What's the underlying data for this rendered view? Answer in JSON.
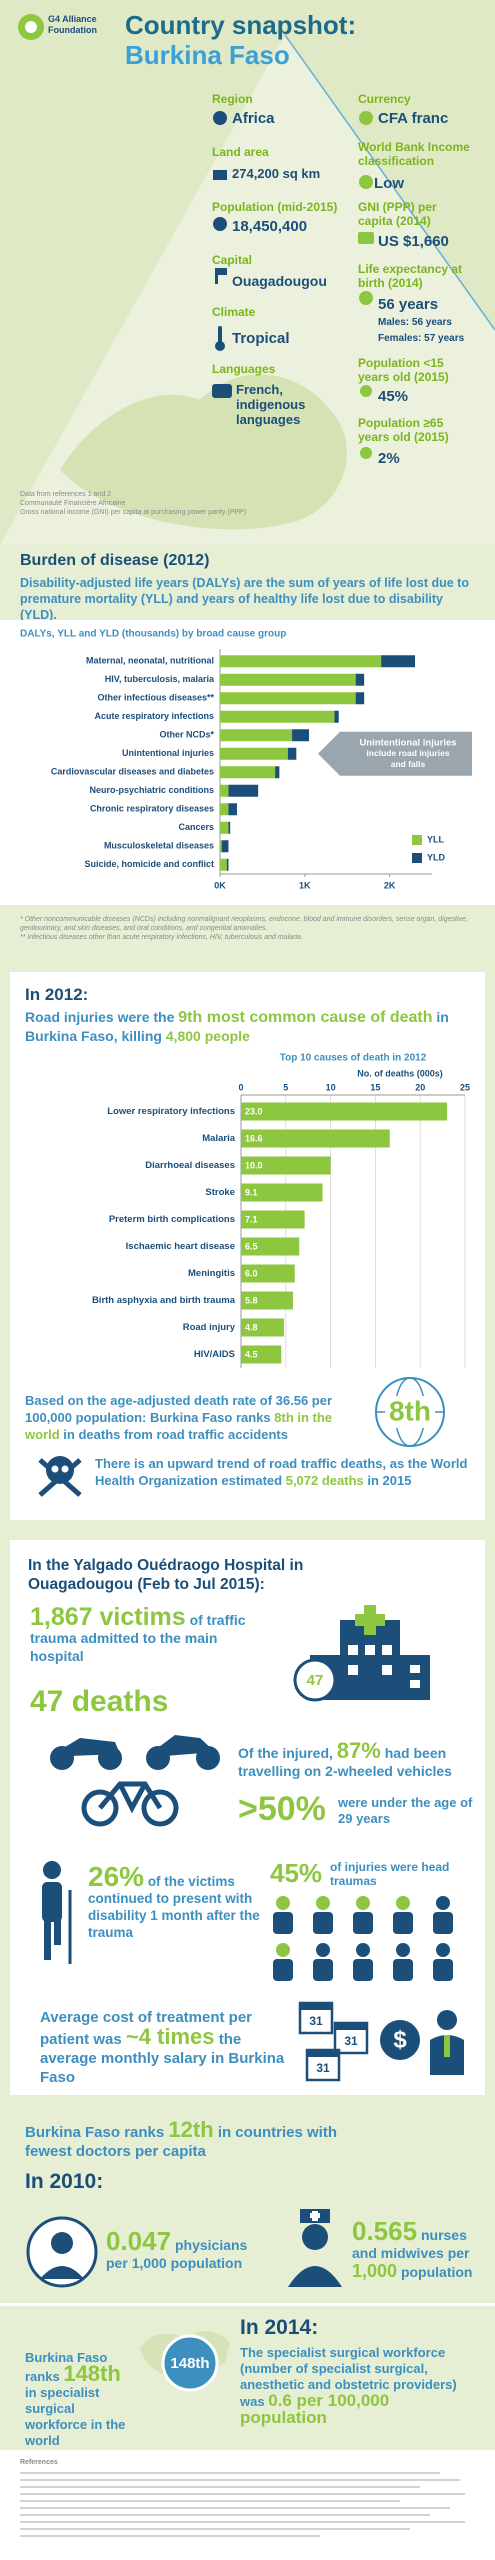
{
  "header": {
    "logo": [
      "G4 Alliance",
      "Foundation"
    ],
    "title": "Country snapshot:",
    "country": "Burkina Faso"
  },
  "facts": [
    {
      "label": "Region",
      "value": "Africa"
    },
    {
      "label": "Currency",
      "value": "CFA franc"
    },
    {
      "label": "Land area",
      "value": "274,200 sq km"
    },
    {
      "label": "World Bank Income classification",
      "value": "Low"
    },
    {
      "label": "Population (mid-2015)",
      "value": "18,450,400"
    },
    {
      "label": "GNI (PPP) per capita (2014)",
      "value": "US $1,660"
    },
    {
      "label": "Capital",
      "value": "Ouagadougou"
    },
    {
      "label": "Life expectancy at birth (2014)",
      "value": "56 years",
      "details": [
        "Males: 56 years",
        "Females: 57 years"
      ]
    },
    {
      "label": "Climate",
      "value": "Tropical"
    },
    {
      "label": "Population <15 years old (2015)",
      "value": "45%"
    },
    {
      "label": "Languages",
      "value": "French, indigenous languages"
    },
    {
      "label": "Population ≥65 years old (2015)",
      "value": "2%"
    }
  ],
  "header_notes": [
    "Data from references 1 and 2",
    "Communauté Financière Africaine",
    "Gross national income (GNI) per capita at purchasing power parity (PPP)"
  ],
  "burden": {
    "title": "Burden of disease (2012)",
    "text": "Disability-adjusted life years (DALYs) are the sum of years of life lost due to premature mortality (YLL) and years of healthy life lost due to disability (YLD)."
  },
  "chart_data": [
    {
      "type": "bar",
      "orientation": "horizontal",
      "stacked": true,
      "title": "DALYs, YLL and YLD (thousands) by broad cause group",
      "categories": [
        "Maternal, neonatal, nutritional",
        "HIV, tuberculosis, malaria",
        "Other infectious diseases**",
        "Acute respiratory infections",
        "Other NCDs*",
        "Unintentional injuries",
        "Cardiovascular diseases and diabetes",
        "Neuro-psychiatric conditions",
        "Chronic respiratory diseases",
        "Cancers",
        "Musculoskeletal diseases",
        "Suicide, homicide and conflict"
      ],
      "series": [
        {
          "name": "YLL",
          "color": "#8dc63f",
          "values": [
            1.9,
            1.6,
            1.6,
            1.35,
            0.85,
            0.8,
            0.65,
            0.1,
            0.1,
            0.1,
            0.02,
            0.08
          ]
        },
        {
          "name": "YLD",
          "color": "#1c4e7a",
          "values": [
            0.4,
            0.1,
            0.1,
            0.05,
            0.2,
            0.1,
            0.05,
            0.35,
            0.1,
            0.02,
            0.08,
            0.02
          ]
        }
      ],
      "xlim": [
        0,
        2.5
      ],
      "xticks": [
        {
          "value": 0,
          "label": "0K"
        },
        {
          "value": 1,
          "label": "1K"
        },
        {
          "value": 2,
          "label": "2K"
        }
      ],
      "legend": "lower right",
      "annotation": [
        "Unintentional injuries",
        "include road injuries",
        "and falls"
      ]
    },
    {
      "type": "bar",
      "orientation": "horizontal",
      "title": "Top 10 causes of death in 2012",
      "xlabel": "No. of deaths (000s)",
      "categories": [
        "Lower respiratory infections",
        "Malaria",
        "Diarrhoeal diseases",
        "Stroke",
        "Preterm birth complications",
        "Ischaemic heart disease",
        "Meningitis",
        "Birth asphyxia and birth trauma",
        "Road injury",
        "HIV/AIDS"
      ],
      "values": [
        23,
        16.6,
        10,
        9.1,
        7.1,
        6.5,
        6,
        5.8,
        4.8,
        4.5
      ],
      "value_labels": [
        "23.0",
        "16.6",
        "10.0",
        "9.1",
        "7.1",
        "6.5",
        "6.0",
        "5.8",
        "4.8",
        "4.5"
      ],
      "color": "#8dc63f",
      "xlim": [
        0,
        25
      ],
      "xticks": [
        0,
        5,
        10,
        15,
        20,
        25
      ],
      "xaxis_position": "top",
      "grid": true
    }
  ],
  "burden_notes": [
    "* Other noncommunicable diseases (NCDs) including nonmalignant neoplasms, endocrine, blood and immune disorders, sense organ, digestive, genitourinary, and skin diseases, and oral conditions, and congenital anomalies.",
    "** Infectious diseases other than acute respiratory infections, HIV, tuberculosis and malaria."
  ],
  "deaths": {
    "heading": "In 2012:",
    "headline": [
      "Road injuries were the",
      "9th most common cause of death",
      "in Burkina Faso, killing",
      "4,800 people"
    ],
    "rank": [
      "Based on the age-adjusted death rate of 36.56 per 100,000 population: Burkina Faso ranks",
      "8th in the world",
      "in deaths from road traffic accidents"
    ],
    "globe": "8th",
    "trend": [
      "There is an upward trend of road traffic deaths, as the World Health Organization estimated",
      "5,072 deaths",
      "in 2015"
    ]
  },
  "hospital": {
    "title": "In the Yalgado Ouédraogo Hospital in Ouagadougou (Feb to Jul 2015):",
    "victims": [
      "1,867 victims",
      "of traffic trauma admitted to the main hospital"
    ],
    "deaths": "47 deaths",
    "icon_number": "47",
    "two_wheel": [
      "Of the injured,",
      "87%",
      "had been travelling on 2-wheeled vehicles"
    ],
    "age": [
      ">50%",
      "were under the age of 29 years"
    ],
    "disability": [
      "26%",
      "of the victims continued to present with disability 1 month after the trauma"
    ],
    "head": [
      "45%",
      "of injuries were head traumas"
    ],
    "cost": [
      "Average cost of treatment per patient was",
      "~4 times",
      "the average monthly salary in Burkina Faso"
    ],
    "calendar": "31"
  },
  "doctors": {
    "rank": [
      "Burkina Faso ranks",
      "12th",
      "in countries with fewest doctors per capita"
    ],
    "year": "In 2010:",
    "physicians": [
      "0.047",
      "physicians per",
      "1,000",
      "population"
    ],
    "nurses": [
      "0.565",
      "nurses and midwives per",
      "1,000",
      "population"
    ]
  },
  "surgical": {
    "rank": [
      "Burkina Faso ranks",
      "148th",
      "in specialist surgical workforce in the world"
    ],
    "globe": "148th",
    "year": "In 2014:",
    "text": [
      "The specialist surgical workforce (number of specialist surgical, anesthetic and obstetric providers) was",
      "0.6 per 100,000 population"
    ]
  },
  "references": {
    "title": "References"
  }
}
